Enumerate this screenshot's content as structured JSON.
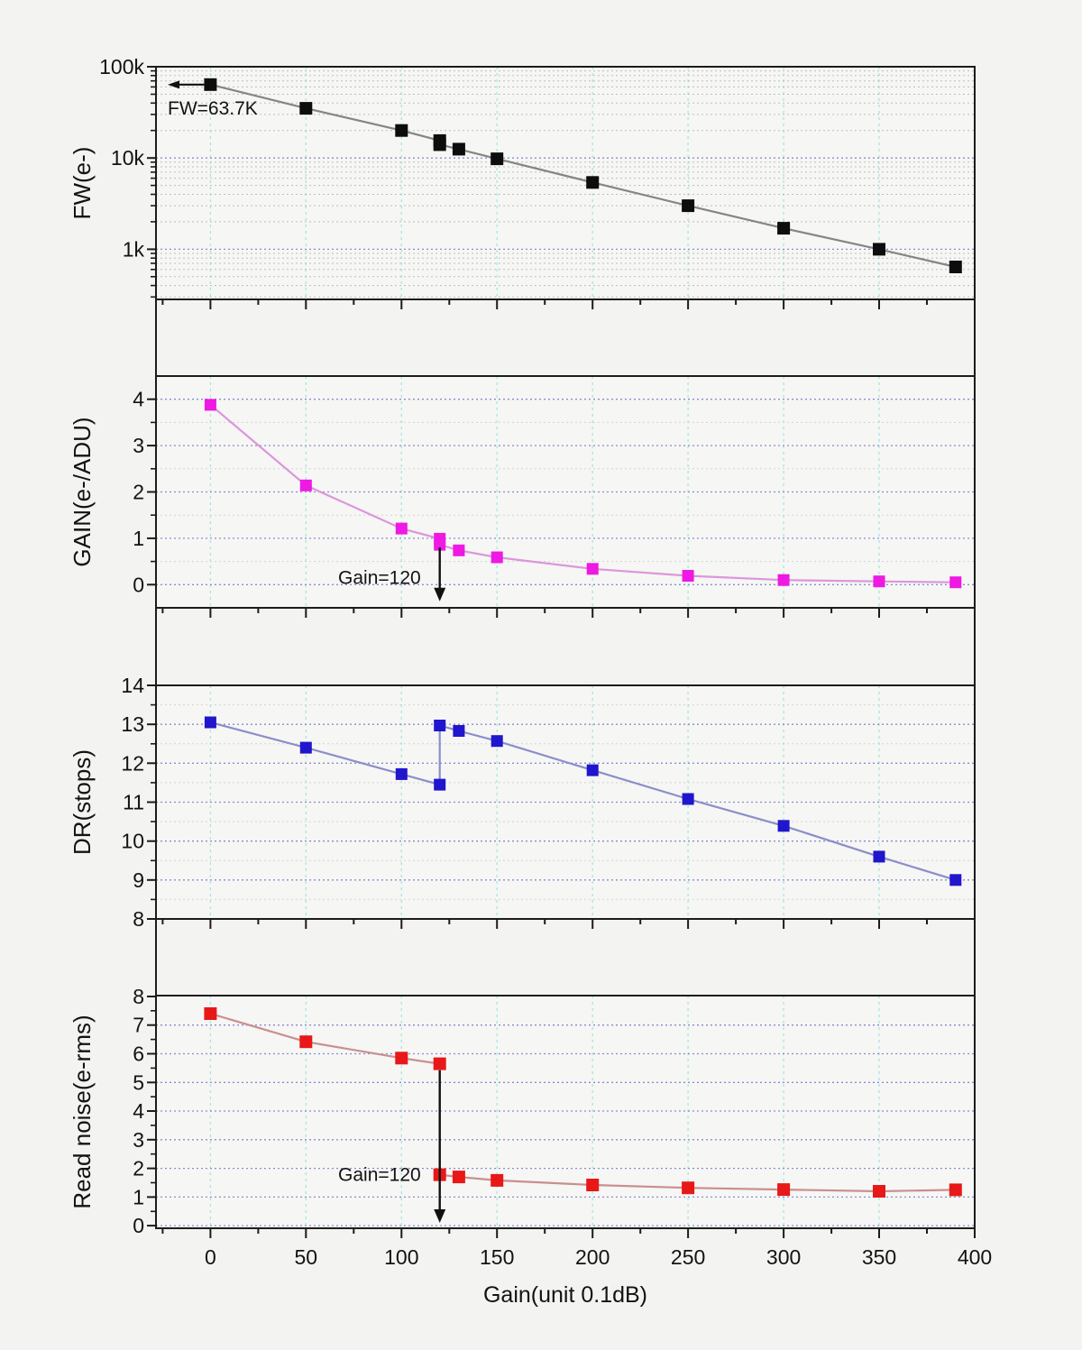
{
  "figure": {
    "background": "#f3f3f1",
    "panel_background": "#f6f6f4",
    "frame_color": "#1c1c1c",
    "text_color": "#131313",
    "x_axis": {
      "title": "Gain(unit 0.1dB)",
      "range": [
        -28.5,
        400
      ],
      "major_ticks": [
        0,
        50,
        100,
        150,
        200,
        250,
        300,
        350,
        400
      ],
      "tick_labels": [
        "0",
        "50",
        "100",
        "150",
        "200",
        "250",
        "300",
        "350",
        "400"
      ],
      "minor_ticks": [
        -25,
        25,
        75,
        125,
        175,
        225,
        275,
        325,
        375
      ],
      "grid_lines": [
        0,
        50,
        100,
        150,
        200,
        250,
        300,
        350
      ],
      "grid_color": "#a4e7e4"
    },
    "grid_colors": {
      "y_major": "#8a8cd0",
      "y_minor_dense": "#bdbdbd",
      "y_minor_light": "#d3d3d3"
    }
  },
  "chart_data": [
    {
      "id": "fw",
      "type": "line",
      "yscale": "log",
      "ylabel": "FW(e-)",
      "ylim": [
        282,
        100000
      ],
      "yticks": [
        {
          "v": 1000,
          "label": "1k"
        },
        {
          "v": 10000,
          "label": "10k"
        },
        {
          "v": 100000,
          "label": "100k"
        }
      ],
      "grid": {
        "y_major": true,
        "y_minor": true,
        "y_minor_style": "dense"
      },
      "colors": {
        "marker": "#0d0d0d",
        "line": "#858585"
      },
      "marker_size": 14,
      "points": [
        [
          0,
          63700
        ],
        [
          50,
          35000
        ],
        [
          100,
          20000
        ],
        [
          120,
          15500
        ],
        [
          120,
          14000
        ],
        [
          130,
          12500
        ],
        [
          150,
          9800
        ],
        [
          200,
          5400
        ],
        [
          250,
          3000
        ],
        [
          300,
          1700
        ],
        [
          350,
          1000
        ],
        [
          390,
          640
        ]
      ],
      "annotation": {
        "kind": "arrow-left",
        "text": "FW=63.7K",
        "x": 0,
        "y": 63700
      }
    },
    {
      "id": "gain",
      "type": "line",
      "yscale": "linear",
      "ylabel": "GAIN(e-/ADU)",
      "ylim": [
        -0.5,
        4.5
      ],
      "yticks": [
        {
          "v": 0,
          "label": "0"
        },
        {
          "v": 1,
          "label": "1"
        },
        {
          "v": 2,
          "label": "2"
        },
        {
          "v": 3,
          "label": "3"
        },
        {
          "v": 4,
          "label": "4"
        }
      ],
      "grid": {
        "y_major": true,
        "y_minor": true,
        "y_minor_style": "light"
      },
      "colors": {
        "marker": "#ee19e2",
        "line": "#dc96dc"
      },
      "marker_size": 13,
      "points": [
        [
          0,
          3.88
        ],
        [
          50,
          2.14
        ],
        [
          100,
          1.21
        ],
        [
          120,
          0.99
        ],
        [
          120,
          0.86
        ],
        [
          130,
          0.74
        ],
        [
          150,
          0.59
        ],
        [
          200,
          0.34
        ],
        [
          250,
          0.19
        ],
        [
          300,
          0.1
        ],
        [
          350,
          0.07
        ],
        [
          390,
          0.05
        ]
      ],
      "annotation": {
        "kind": "arrow-down",
        "text": "Gain=120",
        "x": 120,
        "y_from": 0.8,
        "y_to": -0.36,
        "label_y": 0.15
      }
    },
    {
      "id": "dr",
      "type": "line",
      "yscale": "linear",
      "ylabel": "DR(stops)",
      "ylim": [
        8,
        14
      ],
      "yticks": [
        {
          "v": 8,
          "label": "8"
        },
        {
          "v": 9,
          "label": "9"
        },
        {
          "v": 10,
          "label": "10"
        },
        {
          "v": 11,
          "label": "11"
        },
        {
          "v": 12,
          "label": "12"
        },
        {
          "v": 13,
          "label": "13"
        },
        {
          "v": 14,
          "label": "14"
        }
      ],
      "grid": {
        "y_major": true,
        "y_minor": true,
        "y_minor_style": "light"
      },
      "colors": {
        "marker": "#2016cd",
        "line": "#8b8ec9"
      },
      "marker_size": 13,
      "points": [
        [
          0,
          13.05
        ],
        [
          50,
          12.4
        ],
        [
          100,
          11.72
        ],
        [
          120,
          11.45
        ],
        [
          120,
          12.97
        ],
        [
          130,
          12.83
        ],
        [
          150,
          12.57
        ],
        [
          200,
          11.82
        ],
        [
          250,
          11.08
        ],
        [
          300,
          10.39
        ],
        [
          350,
          9.6
        ],
        [
          390,
          9.0
        ]
      ],
      "annotation": null
    },
    {
      "id": "readnoise",
      "type": "line",
      "yscale": "linear",
      "ylabel": "Read noise(e-rms)",
      "ylim": [
        -0.09,
        8.03
      ],
      "yticks": [
        {
          "v": 0,
          "label": "0"
        },
        {
          "v": 1,
          "label": "1"
        },
        {
          "v": 2,
          "label": "2"
        },
        {
          "v": 3,
          "label": "3"
        },
        {
          "v": 4,
          "label": "4"
        },
        {
          "v": 5,
          "label": "5"
        },
        {
          "v": 6,
          "label": "6"
        },
        {
          "v": 7,
          "label": "7"
        },
        {
          "v": 8,
          "label": "8"
        }
      ],
      "grid": {
        "y_major": true,
        "y_minor": false,
        "y_minor_style": "light"
      },
      "colors": {
        "marker": "#e81818",
        "line": "#c98f8f"
      },
      "marker_size": 14,
      "points": [
        [
          0,
          7.4
        ],
        [
          50,
          6.42
        ],
        [
          100,
          5.85
        ],
        [
          120,
          5.65
        ],
        [
          120,
          1.78
        ],
        [
          130,
          1.7
        ],
        [
          150,
          1.58
        ],
        [
          200,
          1.42
        ],
        [
          250,
          1.32
        ],
        [
          300,
          1.26
        ],
        [
          350,
          1.2
        ],
        [
          390,
          1.25
        ]
      ],
      "annotation": {
        "kind": "arrow-down",
        "text": "Gain=120",
        "x": 120,
        "y_from": 5.42,
        "y_to": 0.1,
        "label_y": 1.78
      },
      "show_x_labels": true
    }
  ]
}
